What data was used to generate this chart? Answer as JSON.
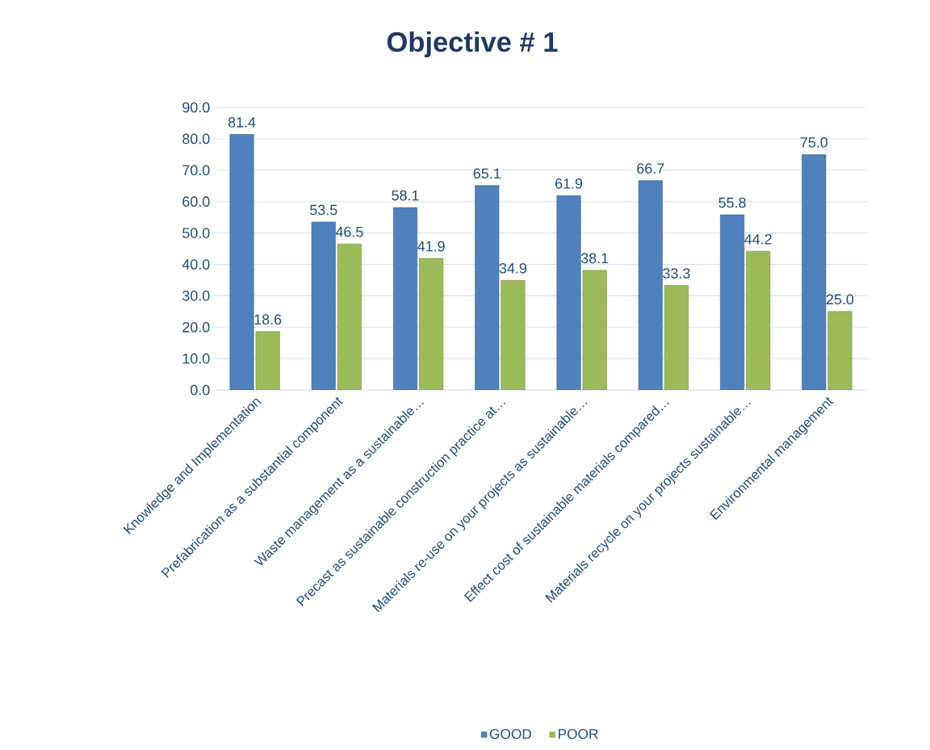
{
  "chart_data": {
    "type": "bar",
    "title": "Objective # 1",
    "categories": [
      "Knowledge and Implementation",
      "Prefabrication as a substantial component",
      "Waste management as a sustainable…",
      "Precast as sustainable construction practice at…",
      "Materials re-use on your projects as sustainable…",
      "Effect cost of sustainable materials compared…",
      "Materials recycle on your projects sustainable…",
      "Environmental management"
    ],
    "series": [
      {
        "name": "GOOD",
        "color": "#4f81bd",
        "values": [
          81.4,
          53.5,
          58.1,
          65.1,
          61.9,
          66.7,
          55.8,
          75.0
        ],
        "value_labels": [
          "81.4",
          "53.5",
          "58.1",
          "65.1",
          "61.9",
          "66.7",
          "55.8",
          "75.0"
        ]
      },
      {
        "name": "POOR",
        "color": "#9bbb59",
        "values": [
          18.6,
          46.5,
          41.9,
          34.9,
          38.1,
          33.3,
          44.2,
          25.0
        ],
        "value_labels": [
          "18.6",
          "46.5",
          "41.9",
          "34.9",
          "38.1",
          "33.3",
          "44.2",
          "25.0"
        ]
      }
    ],
    "ylim": [
      0,
      90
    ],
    "yticks": [
      {
        "value": 0,
        "label": "0.0"
      },
      {
        "value": 10,
        "label": "10.0"
      },
      {
        "value": 20,
        "label": "20.0"
      },
      {
        "value": 30,
        "label": "30.0"
      },
      {
        "value": 40,
        "label": "40.0"
      },
      {
        "value": 50,
        "label": "50.0"
      },
      {
        "value": 60,
        "label": "60.0"
      },
      {
        "value": 70,
        "label": "70.0"
      },
      {
        "value": 80,
        "label": "80.0"
      },
      {
        "value": 90,
        "label": "90.0"
      }
    ],
    "grid": "y",
    "legend": "bottom"
  }
}
